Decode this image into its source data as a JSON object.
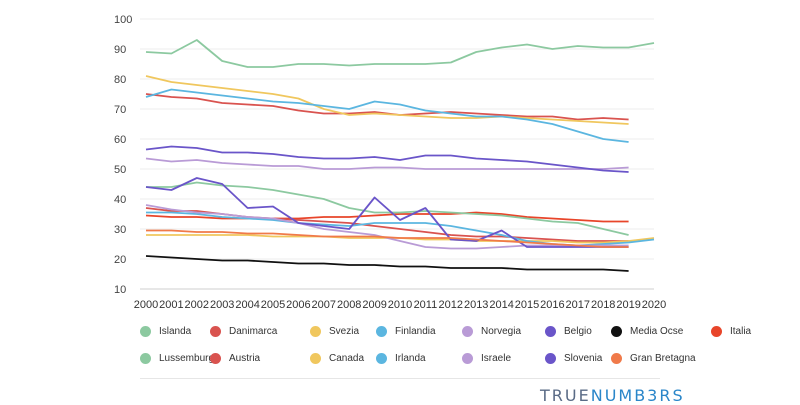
{
  "chart_data": {
    "type": "line",
    "x": [
      2000,
      2001,
      2002,
      2003,
      2004,
      2005,
      2006,
      2007,
      2008,
      2009,
      2010,
      2011,
      2012,
      2013,
      2014,
      2015,
      2016,
      2017,
      2018,
      2019,
      2020
    ],
    "y_ticks": [
      10,
      20,
      30,
      40,
      50,
      60,
      70,
      80,
      90,
      100
    ],
    "ylim": [
      10,
      100
    ],
    "grid": true,
    "legend_position": "bottom",
    "series": [
      {
        "name": "Islanda",
        "color": "#8cc9a0",
        "values": [
          89,
          88.5,
          93,
          86,
          84,
          84,
          85,
          85,
          84.5,
          85,
          85,
          85,
          85.5,
          89,
          90.5,
          91.5,
          90,
          91,
          90.5,
          90.5,
          92
        ]
      },
      {
        "name": "Danimarca",
        "color": "#d9534f",
        "values": [
          75,
          74,
          73.5,
          72,
          71.5,
          71,
          69.5,
          68.5,
          68.5,
          69,
          68,
          68.5,
          69,
          68.5,
          68,
          67.5,
          67.5,
          66.5,
          67,
          66.5,
          null
        ]
      },
      {
        "name": "Svezia",
        "color": "#f0c75e",
        "values": [
          81,
          79,
          78,
          77,
          76,
          75,
          73.5,
          70,
          68,
          68.5,
          68,
          67.5,
          67,
          67,
          67.5,
          67,
          66.5,
          66,
          65.5,
          65,
          null
        ]
      },
      {
        "name": "Finlandia",
        "color": "#5bb6e0",
        "values": [
          74,
          76.5,
          75.5,
          74.5,
          73.5,
          72.5,
          72,
          71,
          70,
          72.5,
          71.5,
          69.5,
          68.5,
          67.5,
          67.5,
          66.5,
          65,
          62.5,
          60,
          59,
          null
        ]
      },
      {
        "name": "Norvegia",
        "color": "#b99bd6",
        "values": [
          53.5,
          52.5,
          53,
          52,
          51.5,
          51,
          51,
          50,
          50,
          50.5,
          50.5,
          50,
          50,
          50,
          50,
          50,
          50,
          50,
          50,
          50.5,
          null
        ]
      },
      {
        "name": "Belgio",
        "color": "#6a55c9",
        "values": [
          56.5,
          57.5,
          57,
          55.5,
          55.5,
          55,
          54,
          53.5,
          53.5,
          54,
          53,
          54.5,
          54.5,
          53.5,
          53,
          52.5,
          51.5,
          50.5,
          49.5,
          49,
          null
        ]
      },
      {
        "name": "Media Ocse",
        "color": "#111111",
        "values": [
          21,
          20.5,
          20,
          19.5,
          19.5,
          19,
          18.5,
          18.5,
          18,
          18,
          17.5,
          17.5,
          17,
          17,
          17,
          16.5,
          16.5,
          16.5,
          16.5,
          16,
          null
        ]
      },
      {
        "name": "Italia",
        "color": "#e8452a",
        "values": [
          34.5,
          34,
          34,
          33.5,
          33.5,
          33.5,
          33.5,
          34,
          34,
          34.5,
          35,
          35,
          35,
          35.5,
          35,
          34,
          33.5,
          33,
          32.5,
          32.5,
          null
        ]
      },
      {
        "name": "Lussemburgo",
        "color": "#8cc9a0",
        "values": [
          44,
          44,
          45.5,
          44.5,
          44,
          43,
          41.5,
          40,
          37,
          35.5,
          35.5,
          36,
          35.5,
          35,
          34.5,
          33.5,
          32.5,
          32,
          30,
          28,
          null
        ]
      },
      {
        "name": "Austria",
        "color": "#d9534f",
        "values": [
          37,
          36,
          36,
          35,
          34,
          33.5,
          33,
          32.5,
          32,
          31,
          30,
          29,
          28,
          27.5,
          27.5,
          27,
          26.5,
          26,
          26,
          26,
          null
        ]
      },
      {
        "name": "Canada",
        "color": "#f0c75e",
        "values": [
          28,
          28,
          28,
          28,
          28,
          27.5,
          27.5,
          27.5,
          27,
          27,
          27,
          26.5,
          26.5,
          26,
          26,
          26,
          26,
          25.5,
          25.5,
          26,
          27
        ]
      },
      {
        "name": "Irlanda",
        "color": "#5bb6e0",
        "values": [
          35.5,
          35.5,
          35,
          34,
          33.5,
          33,
          32,
          31.5,
          31,
          32,
          32,
          32,
          31,
          29.5,
          28,
          26,
          25,
          24.5,
          25,
          25.5,
          26.5
        ]
      },
      {
        "name": "Israele",
        "color": "#b99bd6",
        "values": [
          38,
          36.5,
          35.5,
          35,
          34,
          33.5,
          32,
          30,
          29,
          28,
          26,
          24,
          23.5,
          23.5,
          24,
          24.5,
          24.5,
          24.5,
          24.5,
          24.5,
          null
        ]
      },
      {
        "name": "Slovenia",
        "color": "#6a55c9",
        "values": [
          44,
          43,
          47,
          45,
          37,
          37.5,
          32,
          31,
          30,
          40.5,
          33,
          37,
          26.5,
          26,
          29.5,
          24,
          24,
          24,
          24,
          24,
          null
        ]
      },
      {
        "name": "Gran Bretagna",
        "color": "#f07a4a",
        "values": [
          29.5,
          29.5,
          29,
          29,
          28.5,
          28.5,
          28,
          27.5,
          27.5,
          27.5,
          27,
          27,
          27,
          26.5,
          26,
          25.5,
          25,
          24.5,
          24,
          24,
          null
        ]
      }
    ]
  },
  "brand": {
    "prefix": "TRUE",
    "highlight": "NUMB3RS"
  }
}
